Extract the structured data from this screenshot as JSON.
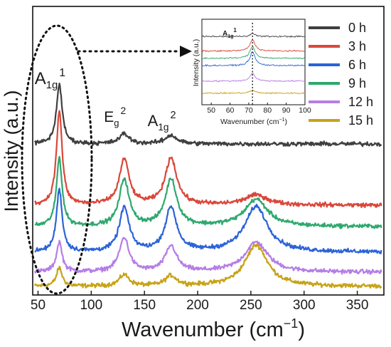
{
  "chart_data": [
    {
      "type": "line",
      "xlabel": "Wavenumber (cm",
      "xlabel_sup": "−1",
      "xlabel_tail": ")",
      "ylabel": "Intensity (a.u.)",
      "xlim": [
        45,
        375
      ],
      "x_ticks": [
        "50",
        "100",
        "150",
        "200",
        "250",
        "300",
        "350"
      ],
      "x_tick_values": [
        50,
        100,
        150,
        200,
        250,
        300,
        350
      ],
      "y_ticks_shown": false,
      "grid": false,
      "legend_placement": "top-right",
      "annotations": [
        {
          "base": "A",
          "sub": "1g",
          "sup": "1",
          "x": 70
        },
        {
          "base": "E",
          "sub": "g",
          "sup": "2",
          "x": 131
        },
        {
          "base": "A",
          "sub": "1g",
          "sup": "2",
          "x": 175
        }
      ],
      "peaks_cm1": [
        70,
        131,
        175,
        255
      ],
      "series": [
        {
          "name": "0 h",
          "color": "#3f3f3f",
          "offset": 5.0,
          "peak_heights": [
            2.1,
            0.35,
            0.3,
            0.0
          ]
        },
        {
          "name": "3 h",
          "color": "#d9473a",
          "offset": 2.85,
          "peak_heights": [
            3.3,
            1.6,
            1.65,
            0.35
          ]
        },
        {
          "name": "6 h",
          "color": "#2c63d8",
          "offset": 1.2,
          "peak_heights": [
            2.2,
            1.55,
            1.55,
            1.6
          ]
        },
        {
          "name": "9 h",
          "color": "#2ea86e",
          "offset": 2.1,
          "peak_heights": [
            2.4,
            1.65,
            1.65,
            0.95
          ]
        },
        {
          "name": "12 h",
          "color": "#b57ee6",
          "offset": 0.5,
          "peak_heights": [
            1.05,
            1.2,
            0.9,
            1.05
          ]
        },
        {
          "name": "15 h",
          "color": "#c8a317",
          "offset": 0.0,
          "peak_heights": [
            0.65,
            0.4,
            0.35,
            1.45
          ]
        }
      ]
    },
    {
      "type": "line",
      "title_base": "A",
      "title_sub": "1g",
      "title_sup": "1",
      "xlabel": "Wavenumber (cm",
      "xlabel_sup": "−1",
      "xlabel_tail": ")",
      "ylabel": "Intensity (a.u.)",
      "xlim": [
        45,
        100
      ],
      "x_ticks": [
        "50",
        "60",
        "70",
        "80",
        "90",
        "100"
      ],
      "x_tick_values": [
        50,
        60,
        70,
        80,
        90,
        100
      ],
      "reference_line_x": 72,
      "note": "magnified inset of the A1g1 region for the same six series"
    }
  ]
}
